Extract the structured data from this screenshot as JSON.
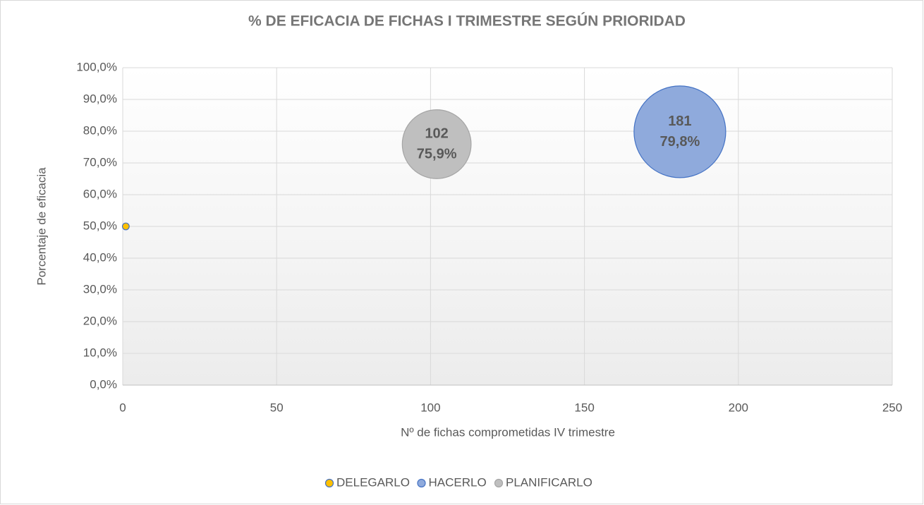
{
  "chart_data": {
    "type": "bubble",
    "title": "% DE EFICACIA DE FICHAS I TRIMESTRE SEGÚN PRIORIDAD",
    "x_label": "Nº de fichas comprometidas IV trimestre",
    "y_label": "Porcentaje de eficacia",
    "xlim": [
      0,
      250
    ],
    "xticks": [
      0,
      50,
      100,
      150,
      200,
      250
    ],
    "ylim": [
      0,
      100
    ],
    "yticks": [
      {
        "value": 0,
        "label": "0,0%"
      },
      {
        "value": 10,
        "label": "10,0%"
      },
      {
        "value": 20,
        "label": "20,0%"
      },
      {
        "value": 30,
        "label": "30,0%"
      },
      {
        "value": 40,
        "label": "40,0%"
      },
      {
        "value": 50,
        "label": "50,0%"
      },
      {
        "value": 60,
        "label": "60,0%"
      },
      {
        "value": 70,
        "label": "70,0%"
      },
      {
        "value": 80,
        "label": "80,0%"
      },
      {
        "value": 90,
        "label": "90,0%"
      },
      {
        "value": 100,
        "label": "100,0%"
      }
    ],
    "grid": true,
    "legend": "bottom",
    "series": [
      {
        "name": "DELEGARLO",
        "color": "#ffc000",
        "stroke": "#4472c4",
        "x": [
          1
        ],
        "values": [
          50
        ],
        "sizes": [
          1
        ]
      },
      {
        "name": "HACERLO",
        "color": "#8faadc",
        "stroke": "#4472c4",
        "x": [
          181
        ],
        "values": [
          79.8
        ],
        "sizes": [
          181
        ],
        "value_labels": [
          "79,8%"
        ]
      },
      {
        "name": "PLANIFICARLO",
        "color": "#bfbfbf",
        "stroke": "#a5a5a5",
        "x": [
          102
        ],
        "values": [
          75.9
        ],
        "sizes": [
          102
        ],
        "value_labels": [
          "75,9%"
        ]
      }
    ]
  }
}
